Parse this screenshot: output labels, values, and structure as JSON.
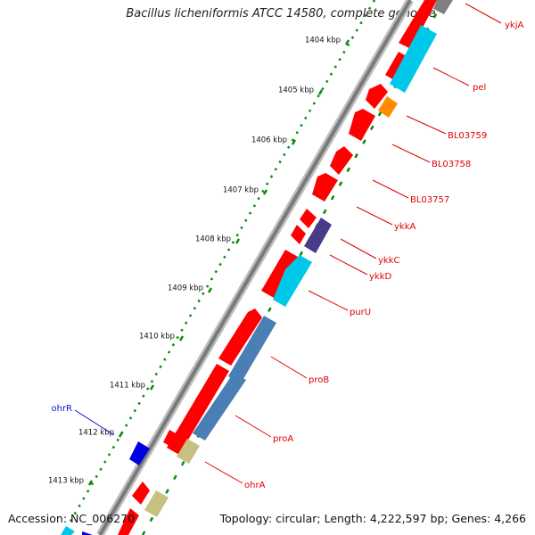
{
  "title": "Bacillus licheniformis ATCC 14580, complete genome",
  "footer": {
    "accession": "Accession: NC_006270",
    "topology": "Topology: circular; Length: 4,222,597 bp; Genes: 4,266"
  },
  "ticks": [
    {
      "label": "1404 kbp"
    },
    {
      "label": "1405 kbp"
    },
    {
      "label": "1406 kbp"
    },
    {
      "label": "1407 kbp"
    },
    {
      "label": "1408 kbp"
    },
    {
      "label": "1409 kbp"
    },
    {
      "label": "1410 kbp"
    },
    {
      "label": "1411 kbp"
    },
    {
      "label": "1412 kbp"
    },
    {
      "label": "1413 kbp"
    }
  ],
  "gene_labels": [
    {
      "name": "ykjA",
      "color": "#e00000"
    },
    {
      "name": "pel",
      "color": "#e00000"
    },
    {
      "name": "BL03759",
      "color": "#e00000"
    },
    {
      "name": "BL03758",
      "color": "#e00000"
    },
    {
      "name": "BL03757",
      "color": "#e00000"
    },
    {
      "name": "ykkA",
      "color": "#e00000"
    },
    {
      "name": "ykkC",
      "color": "#e00000"
    },
    {
      "name": "ykkD",
      "color": "#e00000"
    },
    {
      "name": "purU",
      "color": "#e00000"
    },
    {
      "name": "proB",
      "color": "#e00000"
    },
    {
      "name": "proA",
      "color": "#e00000"
    },
    {
      "name": "ohrA",
      "color": "#e00000"
    },
    {
      "name": "ohrR",
      "color": "#1010d0"
    }
  ],
  "colors": {
    "backbone": "#7a7a7a",
    "gc_dots": "#0a8a0a",
    "cds": "#ff0000",
    "cyan": "#00c8e8",
    "steelblue": "#4a7fb5",
    "purple": "#4a3a8a",
    "orange": "#ff8c00",
    "khaki": "#c8c080",
    "blue": "#0000e0",
    "gray": "#808080"
  }
}
